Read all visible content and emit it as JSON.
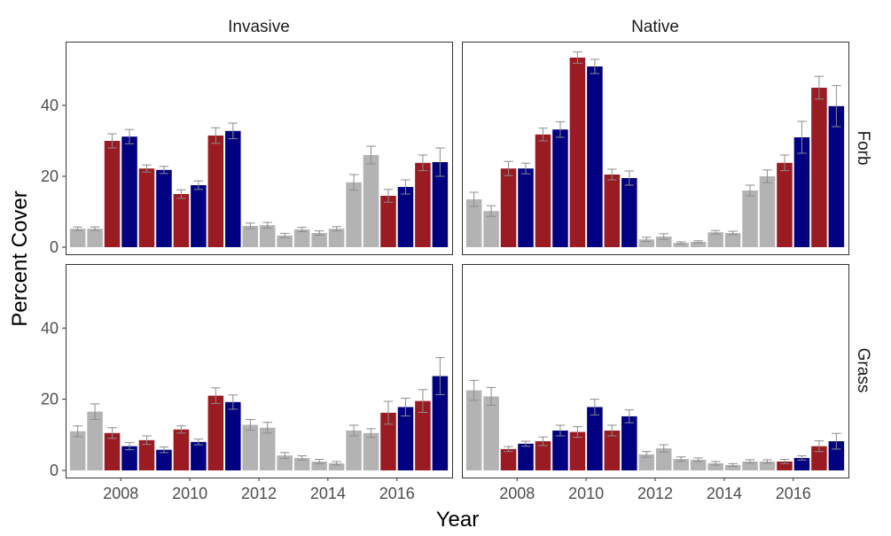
{
  "chart_data": {
    "type": "bar",
    "facet_cols": [
      "Invasive",
      "Native"
    ],
    "facet_rows": [
      "Forb",
      "Grass"
    ],
    "xlabel": "Year",
    "ylabel": "Percent Cover",
    "xlim": [
      2006.4,
      2017.6
    ],
    "ylim": [
      -2,
      58
    ],
    "x_ticks": [
      2008,
      2010,
      2012,
      2014,
      2016
    ],
    "y_ticks": [
      0,
      20,
      40
    ],
    "colors": {
      "gray": "#b3b3b3",
      "red": "#9b1b22",
      "blue": "#000080",
      "error": "#8c8c8c"
    },
    "panels": [
      {
        "col": "Invasive",
        "row": "Forb",
        "bars": [
          {
            "x": 2006.75,
            "value": 5.2,
            "err": 0.5,
            "color": "gray"
          },
          {
            "x": 2007.25,
            "value": 5.2,
            "err": 0.5,
            "color": "gray"
          },
          {
            "x": 2007.75,
            "value": 30.0,
            "err": 2.0,
            "color": "red"
          },
          {
            "x": 2008.25,
            "value": 31.2,
            "err": 2.0,
            "color": "blue"
          },
          {
            "x": 2008.75,
            "value": 22.2,
            "err": 1.0,
            "color": "red"
          },
          {
            "x": 2009.25,
            "value": 21.8,
            "err": 1.0,
            "color": "blue"
          },
          {
            "x": 2009.75,
            "value": 15.0,
            "err": 1.2,
            "color": "red"
          },
          {
            "x": 2010.25,
            "value": 17.5,
            "err": 1.2,
            "color": "blue"
          },
          {
            "x": 2010.75,
            "value": 31.5,
            "err": 2.2,
            "color": "red"
          },
          {
            "x": 2011.25,
            "value": 32.8,
            "err": 2.2,
            "color": "blue"
          },
          {
            "x": 2011.75,
            "value": 6.0,
            "err": 0.8,
            "color": "gray"
          },
          {
            "x": 2012.25,
            "value": 6.2,
            "err": 0.8,
            "color": "gray"
          },
          {
            "x": 2012.75,
            "value": 3.3,
            "err": 0.6,
            "color": "gray"
          },
          {
            "x": 2013.25,
            "value": 5.0,
            "err": 0.6,
            "color": "gray"
          },
          {
            "x": 2013.75,
            "value": 4.0,
            "err": 0.6,
            "color": "gray"
          },
          {
            "x": 2014.25,
            "value": 5.2,
            "err": 0.6,
            "color": "gray"
          },
          {
            "x": 2014.75,
            "value": 18.3,
            "err": 2.2,
            "color": "gray"
          },
          {
            "x": 2015.25,
            "value": 26.0,
            "err": 2.5,
            "color": "gray"
          },
          {
            "x": 2015.75,
            "value": 14.5,
            "err": 1.8,
            "color": "red"
          },
          {
            "x": 2016.25,
            "value": 17.0,
            "err": 2.0,
            "color": "blue"
          },
          {
            "x": 2016.75,
            "value": 23.8,
            "err": 2.2,
            "color": "red"
          },
          {
            "x": 2017.25,
            "value": 24.0,
            "err": 4.0,
            "color": "blue"
          }
        ]
      },
      {
        "col": "Native",
        "row": "Forb",
        "bars": [
          {
            "x": 2006.75,
            "value": 13.5,
            "err": 2.0,
            "color": "gray"
          },
          {
            "x": 2007.25,
            "value": 10.2,
            "err": 1.5,
            "color": "gray"
          },
          {
            "x": 2007.75,
            "value": 22.2,
            "err": 2.0,
            "color": "red"
          },
          {
            "x": 2008.25,
            "value": 22.2,
            "err": 1.5,
            "color": "blue"
          },
          {
            "x": 2008.75,
            "value": 31.8,
            "err": 1.8,
            "color": "red"
          },
          {
            "x": 2009.25,
            "value": 33.2,
            "err": 2.2,
            "color": "blue"
          },
          {
            "x": 2009.75,
            "value": 53.5,
            "err": 1.6,
            "color": "red"
          },
          {
            "x": 2010.25,
            "value": 51.0,
            "err": 2.0,
            "color": "blue"
          },
          {
            "x": 2010.75,
            "value": 20.5,
            "err": 1.5,
            "color": "red"
          },
          {
            "x": 2011.25,
            "value": 19.5,
            "err": 2.0,
            "color": "blue"
          },
          {
            "x": 2011.75,
            "value": 2.2,
            "err": 0.6,
            "color": "gray"
          },
          {
            "x": 2012.25,
            "value": 3.0,
            "err": 0.8,
            "color": "gray"
          },
          {
            "x": 2012.75,
            "value": 1.2,
            "err": 0.3,
            "color": "gray"
          },
          {
            "x": 2013.25,
            "value": 1.5,
            "err": 0.3,
            "color": "gray"
          },
          {
            "x": 2013.75,
            "value": 4.2,
            "err": 0.5,
            "color": "gray"
          },
          {
            "x": 2014.25,
            "value": 4.0,
            "err": 0.5,
            "color": "gray"
          },
          {
            "x": 2014.75,
            "value": 16.0,
            "err": 1.5,
            "color": "gray"
          },
          {
            "x": 2015.25,
            "value": 20.0,
            "err": 1.8,
            "color": "gray"
          },
          {
            "x": 2015.75,
            "value": 23.8,
            "err": 2.2,
            "color": "red"
          },
          {
            "x": 2016.25,
            "value": 31.0,
            "err": 4.5,
            "color": "blue"
          },
          {
            "x": 2016.75,
            "value": 45.0,
            "err": 3.2,
            "color": "red"
          },
          {
            "x": 2017.25,
            "value": 39.8,
            "err": 5.8,
            "color": "blue"
          }
        ]
      },
      {
        "col": "Invasive",
        "row": "Grass",
        "bars": [
          {
            "x": 2006.75,
            "value": 11.0,
            "err": 1.5,
            "color": "gray"
          },
          {
            "x": 2007.25,
            "value": 16.5,
            "err": 2.2,
            "color": "gray"
          },
          {
            "x": 2007.75,
            "value": 10.5,
            "err": 1.5,
            "color": "red"
          },
          {
            "x": 2008.25,
            "value": 6.8,
            "err": 1.0,
            "color": "blue"
          },
          {
            "x": 2008.75,
            "value": 8.5,
            "err": 1.2,
            "color": "red"
          },
          {
            "x": 2009.25,
            "value": 5.8,
            "err": 0.8,
            "color": "blue"
          },
          {
            "x": 2009.75,
            "value": 11.5,
            "err": 1.0,
            "color": "red"
          },
          {
            "x": 2010.25,
            "value": 8.0,
            "err": 0.8,
            "color": "blue"
          },
          {
            "x": 2010.75,
            "value": 21.0,
            "err": 2.2,
            "color": "red"
          },
          {
            "x": 2011.25,
            "value": 19.2,
            "err": 2.0,
            "color": "blue"
          },
          {
            "x": 2011.75,
            "value": 12.8,
            "err": 1.5,
            "color": "gray"
          },
          {
            "x": 2012.25,
            "value": 12.0,
            "err": 1.5,
            "color": "gray"
          },
          {
            "x": 2012.75,
            "value": 4.2,
            "err": 0.8,
            "color": "gray"
          },
          {
            "x": 2013.25,
            "value": 3.5,
            "err": 0.6,
            "color": "gray"
          },
          {
            "x": 2013.75,
            "value": 2.5,
            "err": 0.6,
            "color": "gray"
          },
          {
            "x": 2014.25,
            "value": 2.0,
            "err": 0.5,
            "color": "gray"
          },
          {
            "x": 2014.75,
            "value": 11.2,
            "err": 1.5,
            "color": "gray"
          },
          {
            "x": 2015.25,
            "value": 10.5,
            "err": 1.2,
            "color": "gray"
          },
          {
            "x": 2015.75,
            "value": 16.2,
            "err": 3.2,
            "color": "red"
          },
          {
            "x": 2016.25,
            "value": 17.8,
            "err": 2.5,
            "color": "blue"
          },
          {
            "x": 2016.75,
            "value": 19.5,
            "err": 3.2,
            "color": "red"
          },
          {
            "x": 2017.25,
            "value": 26.5,
            "err": 5.2,
            "color": "blue"
          }
        ]
      },
      {
        "col": "Native",
        "row": "Grass",
        "bars": [
          {
            "x": 2006.75,
            "value": 22.5,
            "err": 2.8,
            "color": "gray"
          },
          {
            "x": 2007.25,
            "value": 20.8,
            "err": 2.5,
            "color": "gray"
          },
          {
            "x": 2007.75,
            "value": 6.0,
            "err": 0.7,
            "color": "red"
          },
          {
            "x": 2008.25,
            "value": 7.5,
            "err": 0.7,
            "color": "blue"
          },
          {
            "x": 2008.75,
            "value": 8.2,
            "err": 1.2,
            "color": "red"
          },
          {
            "x": 2009.25,
            "value": 11.2,
            "err": 1.5,
            "color": "blue"
          },
          {
            "x": 2009.75,
            "value": 10.8,
            "err": 1.5,
            "color": "red"
          },
          {
            "x": 2010.25,
            "value": 17.8,
            "err": 2.2,
            "color": "blue"
          },
          {
            "x": 2010.75,
            "value": 11.2,
            "err": 1.5,
            "color": "red"
          },
          {
            "x": 2011.25,
            "value": 15.2,
            "err": 1.8,
            "color": "blue"
          },
          {
            "x": 2011.75,
            "value": 4.5,
            "err": 0.8,
            "color": "gray"
          },
          {
            "x": 2012.25,
            "value": 6.2,
            "err": 1.0,
            "color": "gray"
          },
          {
            "x": 2012.75,
            "value": 3.2,
            "err": 0.6,
            "color": "gray"
          },
          {
            "x": 2013.25,
            "value": 3.0,
            "err": 0.5,
            "color": "gray"
          },
          {
            "x": 2013.75,
            "value": 2.0,
            "err": 0.5,
            "color": "gray"
          },
          {
            "x": 2014.25,
            "value": 1.5,
            "err": 0.4,
            "color": "gray"
          },
          {
            "x": 2014.75,
            "value": 2.5,
            "err": 0.5,
            "color": "gray"
          },
          {
            "x": 2015.25,
            "value": 2.5,
            "err": 0.5,
            "color": "gray"
          },
          {
            "x": 2015.75,
            "value": 2.5,
            "err": 0.6,
            "color": "red"
          },
          {
            "x": 2016.25,
            "value": 3.5,
            "err": 0.6,
            "color": "blue"
          },
          {
            "x": 2016.75,
            "value": 6.8,
            "err": 1.5,
            "color": "red"
          },
          {
            "x": 2017.25,
            "value": 8.2,
            "err": 2.2,
            "color": "blue"
          }
        ]
      }
    ]
  }
}
